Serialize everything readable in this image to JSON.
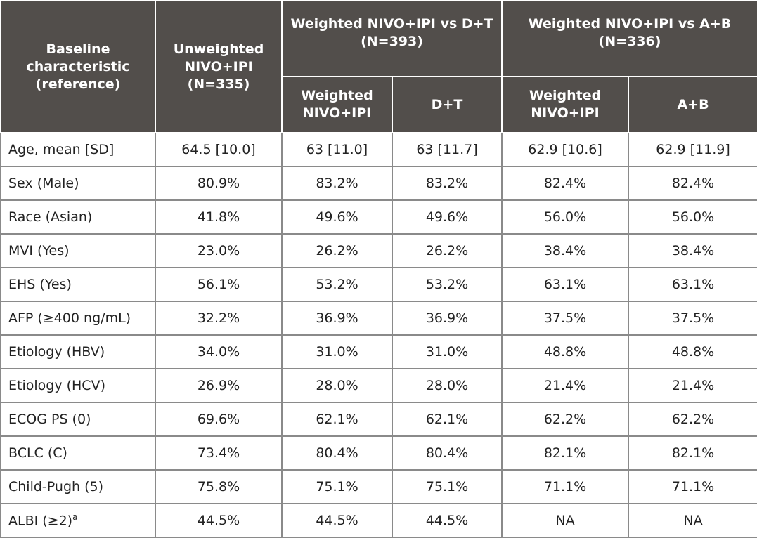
{
  "table": {
    "header": {
      "baseline": "Baseline characteristic (reference)",
      "unweighted": "Unweighted NIVO+IPI (N=335)",
      "group_dt": "Weighted NIVO+IPI vs D+T (N=393)",
      "group_ab": "Weighted NIVO+IPI vs A+B (N=336)",
      "sub_dt": [
        "Weighted NIVO+IPI",
        "D+T"
      ],
      "sub_ab": [
        "Weighted NIVO+IPI",
        "A+B"
      ]
    },
    "rows": [
      {
        "label": "Age, mean [SD]",
        "values": [
          "64.5 [10.0]",
          "63 [11.0]",
          "63 [11.7]",
          "62.9 [10.6]",
          "62.9 [11.9]"
        ]
      },
      {
        "label": "Sex (Male)",
        "values": [
          "80.9%",
          "83.2%",
          "83.2%",
          "82.4%",
          "82.4%"
        ]
      },
      {
        "label": "Race (Asian)",
        "values": [
          "41.8%",
          "49.6%",
          "49.6%",
          "56.0%",
          "56.0%"
        ]
      },
      {
        "label": "MVI (Yes)",
        "values": [
          "23.0%",
          "26.2%",
          "26.2%",
          "38.4%",
          "38.4%"
        ]
      },
      {
        "label": "EHS (Yes)",
        "values": [
          "56.1%",
          "53.2%",
          "53.2%",
          "63.1%",
          "63.1%"
        ]
      },
      {
        "label": "AFP (≥400 ng/mL)",
        "values": [
          "32.2%",
          "36.9%",
          "36.9%",
          "37.5%",
          "37.5%"
        ]
      },
      {
        "label": "Etiology (HBV)",
        "values": [
          "34.0%",
          "31.0%",
          "31.0%",
          "48.8%",
          "48.8%"
        ]
      },
      {
        "label": "Etiology (HCV)",
        "values": [
          "26.9%",
          "28.0%",
          "28.0%",
          "21.4%",
          "21.4%"
        ]
      },
      {
        "label": "ECOG PS (0)",
        "values": [
          "69.6%",
          "62.1%",
          "62.1%",
          "62.2%",
          "62.2%"
        ]
      },
      {
        "label": "BCLC (C)",
        "values": [
          "73.4%",
          "80.4%",
          "80.4%",
          "82.1%",
          "82.1%"
        ]
      },
      {
        "label": "Child-Pugh (5)",
        "values": [
          "75.8%",
          "75.1%",
          "75.1%",
          "71.1%",
          "71.1%"
        ]
      },
      {
        "label": "ALBI (≥2)",
        "sup": "a",
        "values": [
          "44.5%",
          "44.5%",
          "44.5%",
          "NA",
          "NA"
        ]
      }
    ]
  }
}
